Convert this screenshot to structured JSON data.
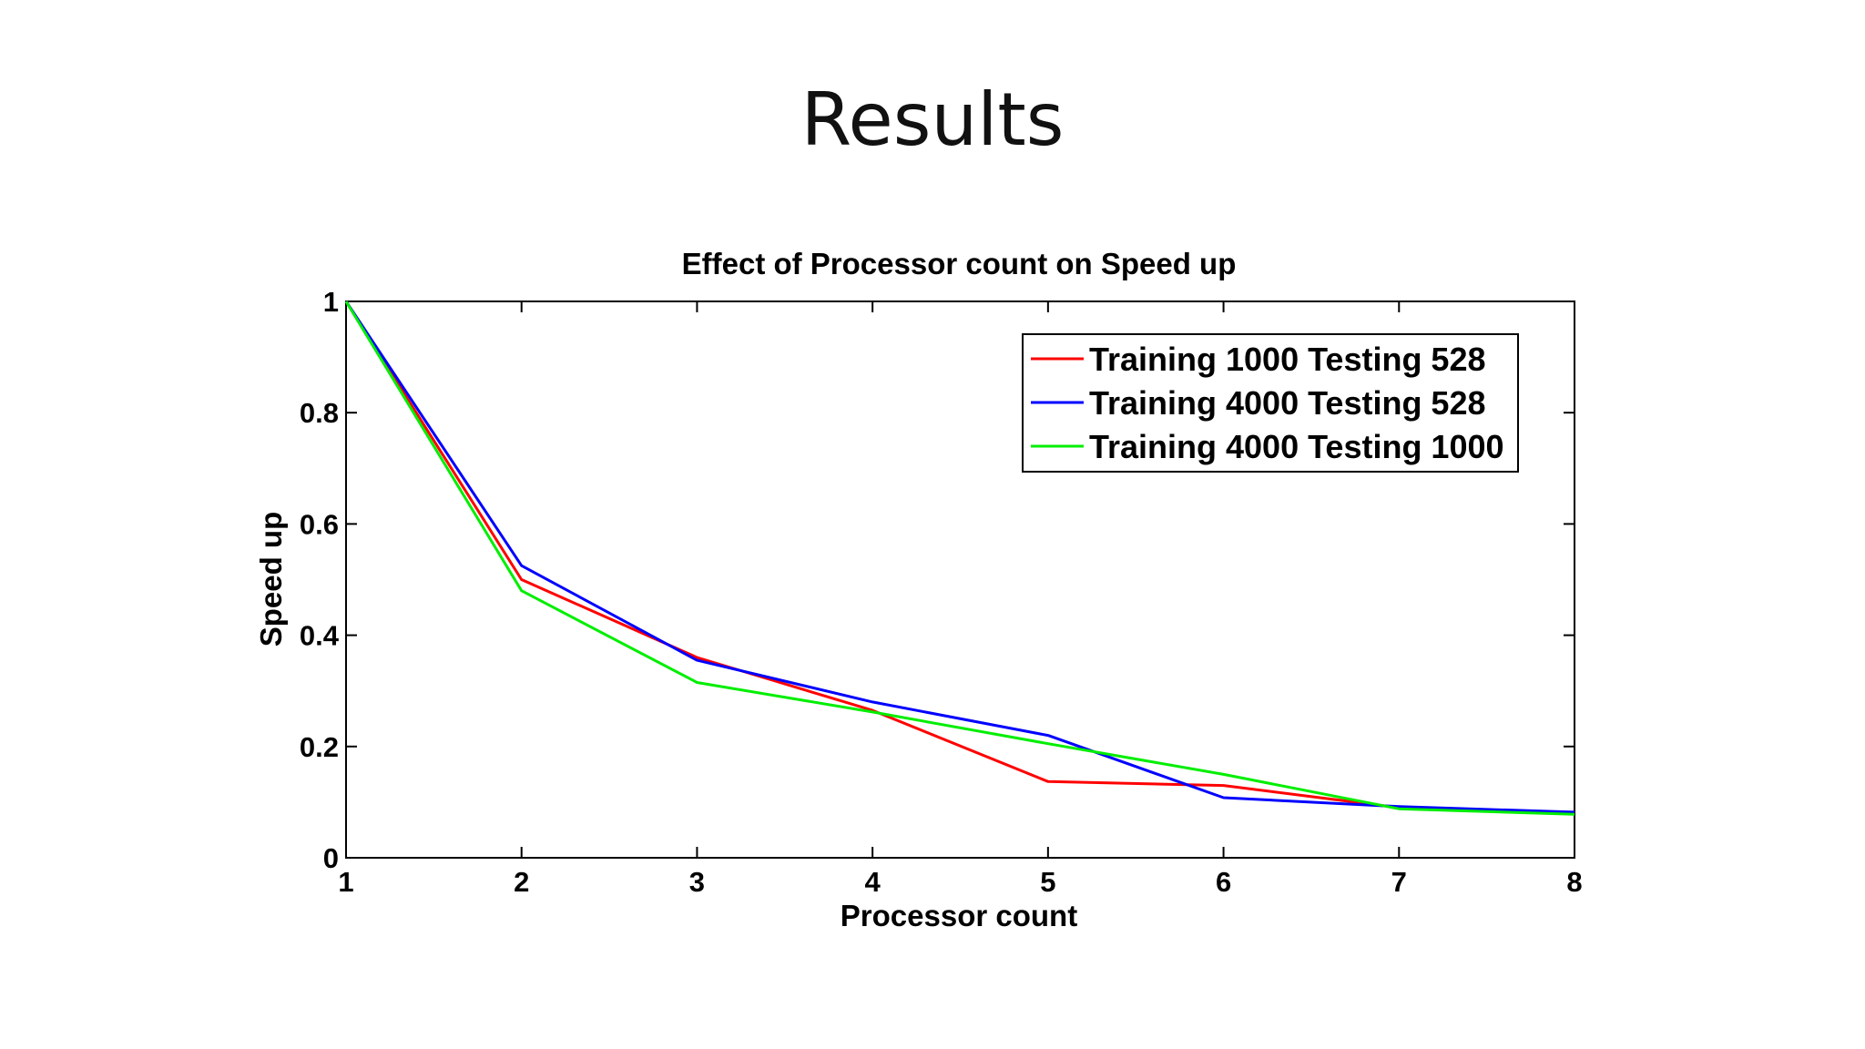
{
  "slide": {
    "title": "Results"
  },
  "chart_data": {
    "type": "line",
    "title": "Effect of Processor count on Speed up",
    "xlabel": "Processor count",
    "ylabel": "Speed up",
    "x": [
      1,
      2,
      3,
      4,
      5,
      6,
      7,
      8
    ],
    "xlim": [
      1,
      8
    ],
    "ylim": [
      0,
      1
    ],
    "xticks": [
      1,
      2,
      3,
      4,
      5,
      6,
      7,
      8
    ],
    "yticks": [
      0,
      0.2,
      0.4,
      0.6,
      0.8,
      1
    ],
    "ytick_labels": [
      "0",
      "0.2",
      "0.4",
      "0.6",
      "0.8",
      "1"
    ],
    "grid": false,
    "legend_position": "top-right",
    "series": [
      {
        "name": "Training 1000 Testing 528",
        "color": "#ff0000",
        "values": [
          1.0,
          0.5,
          0.36,
          0.265,
          0.137,
          0.13,
          0.09,
          0.08
        ]
      },
      {
        "name": "Training 4000 Testing 528",
        "color": "#0000ff",
        "values": [
          1.0,
          0.525,
          0.355,
          0.28,
          0.22,
          0.108,
          0.092,
          0.082
        ]
      },
      {
        "name": "Training 4000 Testing 1000",
        "color": "#00ee00",
        "values": [
          1.0,
          0.48,
          0.315,
          0.262,
          0.205,
          0.15,
          0.088,
          0.078
        ]
      }
    ]
  }
}
